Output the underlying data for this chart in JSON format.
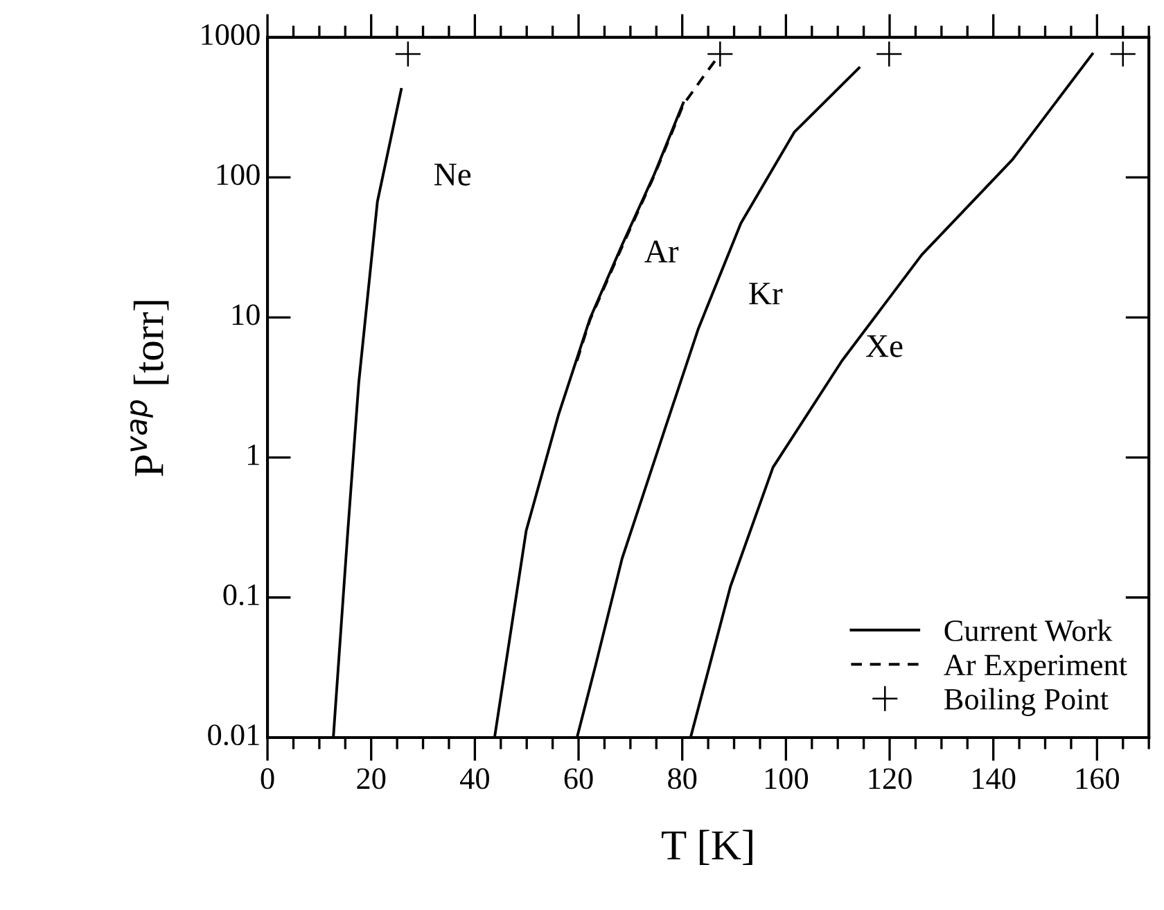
{
  "chart_data": {
    "type": "line",
    "xlabel": "T [K]",
    "ylabel": "P$^{vap}$ [torr]",
    "xlim": [
      0,
      170
    ],
    "xticks": [
      0,
      20,
      40,
      60,
      80,
      100,
      120,
      140,
      160
    ],
    "ylim": [
      0.01,
      1000
    ],
    "yticks": [
      0.01,
      0.1,
      1,
      10,
      100,
      1000
    ],
    "log": "y",
    "legend": "bottom right",
    "series": [
      {
        "name": "Current Work",
        "color": "#000000",
        "line_style": "solid",
        "x": [
          12.7,
          15.5,
          17.6,
          21.2,
          25.8
        ],
        "values": [
          0.01,
          0.3,
          3.4,
          67,
          425
        ]
      },
      {
        "color": "#000000",
        "line_style": "solid",
        "x": [
          43.8,
          49.9,
          56.1,
          62.2,
          68.4,
          74.6,
          80.2
        ],
        "values": [
          0.01,
          0.3,
          2.0,
          9.8,
          33,
          105,
          340
        ]
      },
      {
        "color": "#000000",
        "line_style": "solid",
        "x": [
          59.7,
          63.3,
          68.4,
          76.9,
          83.1,
          91.3,
          101.6,
          114.1
        ],
        "values": [
          0.01,
          0.033,
          0.19,
          1.7,
          8.3,
          47,
          210,
          605
        ]
      },
      {
        "color": "#000000",
        "line_style": "solid",
        "x": [
          81.6,
          89.3,
          97.5,
          110.8,
          126.2,
          143.7,
          159.1
        ],
        "values": [
          0.01,
          0.12,
          0.85,
          4.9,
          28,
          134,
          760
        ]
      },
      {
        "name": "Ar Experiment",
        "color": "#000000",
        "line_style": "dashed",
        "x": [
          59.7,
          62.2,
          68.4,
          74.6,
          80.2,
          84,
          87.3
        ],
        "values": [
          4.9,
          9.6,
          32,
          103,
          330,
          520,
          760
        ]
      },
      {
        "name": "Boiling Point",
        "type": "scatter",
        "color": "#000000",
        "marker": "cross",
        "x": [
          27.1,
          87.3,
          119.9,
          165.0
        ],
        "values": [
          760,
          760,
          760,
          760
        ]
      }
    ],
    "annotations": [
      "Ne",
      "Ar",
      "Kr",
      "Xe"
    ]
  }
}
